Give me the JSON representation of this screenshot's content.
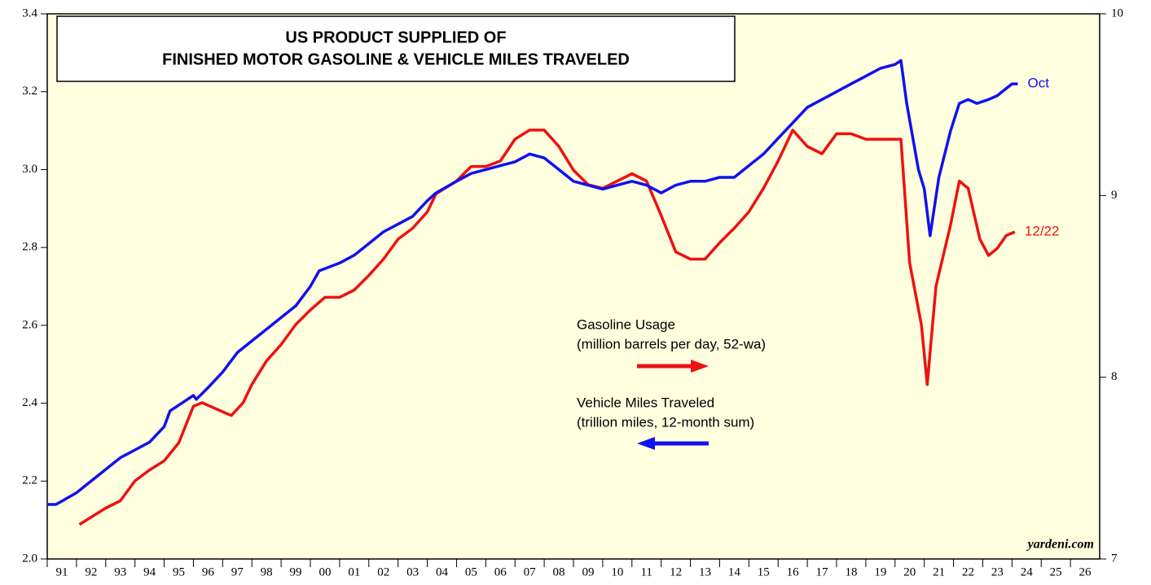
{
  "chart_data": {
    "type": "line",
    "title": [
      "US PRODUCT SUPPLIED OF",
      "FINISHED MOTOR GASOLINE & VEHICLE MILES TRAVELED"
    ],
    "annotations": {
      "source": "yardeni.com"
    },
    "xlim": [
      1991,
      2027
    ],
    "xticks": [
      {
        "value": 1991,
        "label": "91"
      },
      {
        "value": 1992,
        "label": "92"
      },
      {
        "value": 1993,
        "label": "93"
      },
      {
        "value": 1994,
        "label": "94"
      },
      {
        "value": 1995,
        "label": "95"
      },
      {
        "value": 1996,
        "label": "96"
      },
      {
        "value": 1997,
        "label": "97"
      },
      {
        "value": 1998,
        "label": "98"
      },
      {
        "value": 1999,
        "label": "99"
      },
      {
        "value": 2000,
        "label": "00"
      },
      {
        "value": 2001,
        "label": "01"
      },
      {
        "value": 2002,
        "label": "02"
      },
      {
        "value": 2003,
        "label": "03"
      },
      {
        "value": 2004,
        "label": "04"
      },
      {
        "value": 2005,
        "label": "05"
      },
      {
        "value": 2006,
        "label": "06"
      },
      {
        "value": 2007,
        "label": "07"
      },
      {
        "value": 2008,
        "label": "08"
      },
      {
        "value": 2009,
        "label": "09"
      },
      {
        "value": 2010,
        "label": "10"
      },
      {
        "value": 2011,
        "label": "11"
      },
      {
        "value": 2012,
        "label": "12"
      },
      {
        "value": 2013,
        "label": "13"
      },
      {
        "value": 2014,
        "label": "14"
      },
      {
        "value": 2015,
        "label": "15"
      },
      {
        "value": 2016,
        "label": "16"
      },
      {
        "value": 2017,
        "label": "17"
      },
      {
        "value": 2018,
        "label": "18"
      },
      {
        "value": 2019,
        "label": "19"
      },
      {
        "value": 2020,
        "label": "20"
      },
      {
        "value": 2021,
        "label": "21"
      },
      {
        "value": 2022,
        "label": "22"
      },
      {
        "value": 2023,
        "label": "23"
      },
      {
        "value": 2024,
        "label": "24"
      },
      {
        "value": 2025,
        "label": "25"
      },
      {
        "value": 2026,
        "label": "26"
      }
    ],
    "ylim": [
      2.0,
      3.4
    ],
    "yticks": [
      {
        "value": 2.0,
        "label": "2.0"
      },
      {
        "value": 2.2,
        "label": "2.2"
      },
      {
        "value": 2.4,
        "label": "2.4"
      },
      {
        "value": 2.6,
        "label": "2.6"
      },
      {
        "value": 2.8,
        "label": "2.8"
      },
      {
        "value": 3.0,
        "label": "3.0"
      },
      {
        "value": 3.2,
        "label": "3.2"
      },
      {
        "value": 3.4,
        "label": "3.4"
      }
    ],
    "y2lim": [
      7,
      10
    ],
    "y2ticks": [
      7,
      8,
      9,
      10
    ],
    "series": [
      {
        "name": "Gasoline Usage",
        "description": "(million barrels per day, 52-wa)",
        "end_label": "12/22",
        "color": "#ee1111",
        "axis": "y2",
        "x": [
          1992.1,
          1993.0,
          1993.5,
          1994.0,
          1994.5,
          1995.0,
          1995.5,
          1996.0,
          1996.3,
          1997.0,
          1997.3,
          1997.7,
          1998.0,
          1998.5,
          1999.0,
          1999.5,
          2000.0,
          2000.5,
          2001.0,
          2001.5,
          2002.0,
          2002.5,
          2003.0,
          2003.5,
          2004.0,
          2004.3,
          2005.0,
          2005.5,
          2006.0,
          2006.5,
          2007.0,
          2007.5,
          2008.0,
          2008.5,
          2009.0,
          2009.5,
          2010.0,
          2010.5,
          2011.0,
          2011.5,
          2012.0,
          2012.5,
          2013.0,
          2013.5,
          2014.0,
          2014.5,
          2015.0,
          2015.5,
          2016.0,
          2016.5,
          2017.0,
          2017.5,
          2018.0,
          2018.5,
          2019.0,
          2019.5,
          2020.0,
          2020.2,
          2020.5,
          2020.9,
          2021.1,
          2021.4,
          2021.9,
          2022.2,
          2022.5,
          2022.9,
          2023.2,
          2023.5,
          2023.8,
          2024.1
        ],
        "values": [
          7.19,
          7.28,
          7.32,
          7.43,
          7.49,
          7.54,
          7.64,
          7.84,
          7.86,
          7.81,
          7.79,
          7.86,
          7.96,
          8.09,
          8.18,
          8.29,
          8.37,
          8.44,
          8.44,
          8.48,
          8.56,
          8.65,
          8.76,
          8.82,
          8.91,
          9.01,
          9.08,
          9.16,
          9.16,
          9.19,
          9.31,
          9.36,
          9.36,
          9.27,
          9.14,
          9.06,
          9.04,
          9.08,
          9.12,
          9.08,
          8.89,
          8.69,
          8.65,
          8.65,
          8.74,
          8.82,
          8.91,
          9.04,
          9.19,
          9.36,
          9.27,
          9.23,
          9.34,
          9.34,
          9.31,
          9.31,
          9.31,
          9.31,
          8.63,
          8.29,
          7.96,
          8.5,
          8.84,
          9.08,
          9.04,
          8.76,
          8.67,
          8.71,
          8.78,
          8.8
        ]
      },
      {
        "name": "Vehicle Miles Traveled",
        "description": "(trillion miles, 12-month sum)",
        "end_label": "Oct",
        "color": "#1111ee",
        "axis": "y",
        "x": [
          1991.0,
          1991.3,
          1992.0,
          1992.5,
          1993.0,
          1993.5,
          1994.0,
          1994.5,
          1995.0,
          1995.2,
          1995.6,
          1996.0,
          1996.1,
          1996.5,
          1997.0,
          1997.5,
          1998.0,
          1998.5,
          1999.0,
          1999.5,
          2000.0,
          2000.3,
          2001.0,
          2001.5,
          2002.0,
          2002.5,
          2003.0,
          2003.5,
          2004.0,
          2004.3,
          2005.0,
          2005.5,
          2006.0,
          2006.5,
          2007.0,
          2007.5,
          2008.0,
          2008.5,
          2009.0,
          2009.5,
          2010.0,
          2010.5,
          2011.0,
          2011.5,
          2012.0,
          2012.5,
          2013.0,
          2013.5,
          2014.0,
          2014.5,
          2015.0,
          2015.5,
          2016.0,
          2016.5,
          2017.0,
          2017.5,
          2018.0,
          2018.5,
          2019.0,
          2019.5,
          2020.0,
          2020.2,
          2020.4,
          2020.8,
          2021.0,
          2021.2,
          2021.5,
          2021.9,
          2022.2,
          2022.5,
          2022.8,
          2023.2,
          2023.5,
          2024.0,
          2024.2
        ],
        "values": [
          2.14,
          2.14,
          2.17,
          2.2,
          2.23,
          2.26,
          2.28,
          2.3,
          2.34,
          2.38,
          2.4,
          2.42,
          2.41,
          2.44,
          2.48,
          2.53,
          2.56,
          2.59,
          2.62,
          2.65,
          2.7,
          2.74,
          2.76,
          2.78,
          2.81,
          2.84,
          2.86,
          2.88,
          2.92,
          2.94,
          2.97,
          2.99,
          3.0,
          3.01,
          3.02,
          3.04,
          3.03,
          3.0,
          2.97,
          2.96,
          2.95,
          2.96,
          2.97,
          2.96,
          2.94,
          2.96,
          2.97,
          2.97,
          2.98,
          2.98,
          3.01,
          3.04,
          3.08,
          3.12,
          3.16,
          3.18,
          3.2,
          3.22,
          3.24,
          3.26,
          3.27,
          3.28,
          3.17,
          3.0,
          2.95,
          2.83,
          2.98,
          3.1,
          3.17,
          3.18,
          3.17,
          3.18,
          3.19,
          3.22,
          3.22
        ]
      }
    ]
  }
}
